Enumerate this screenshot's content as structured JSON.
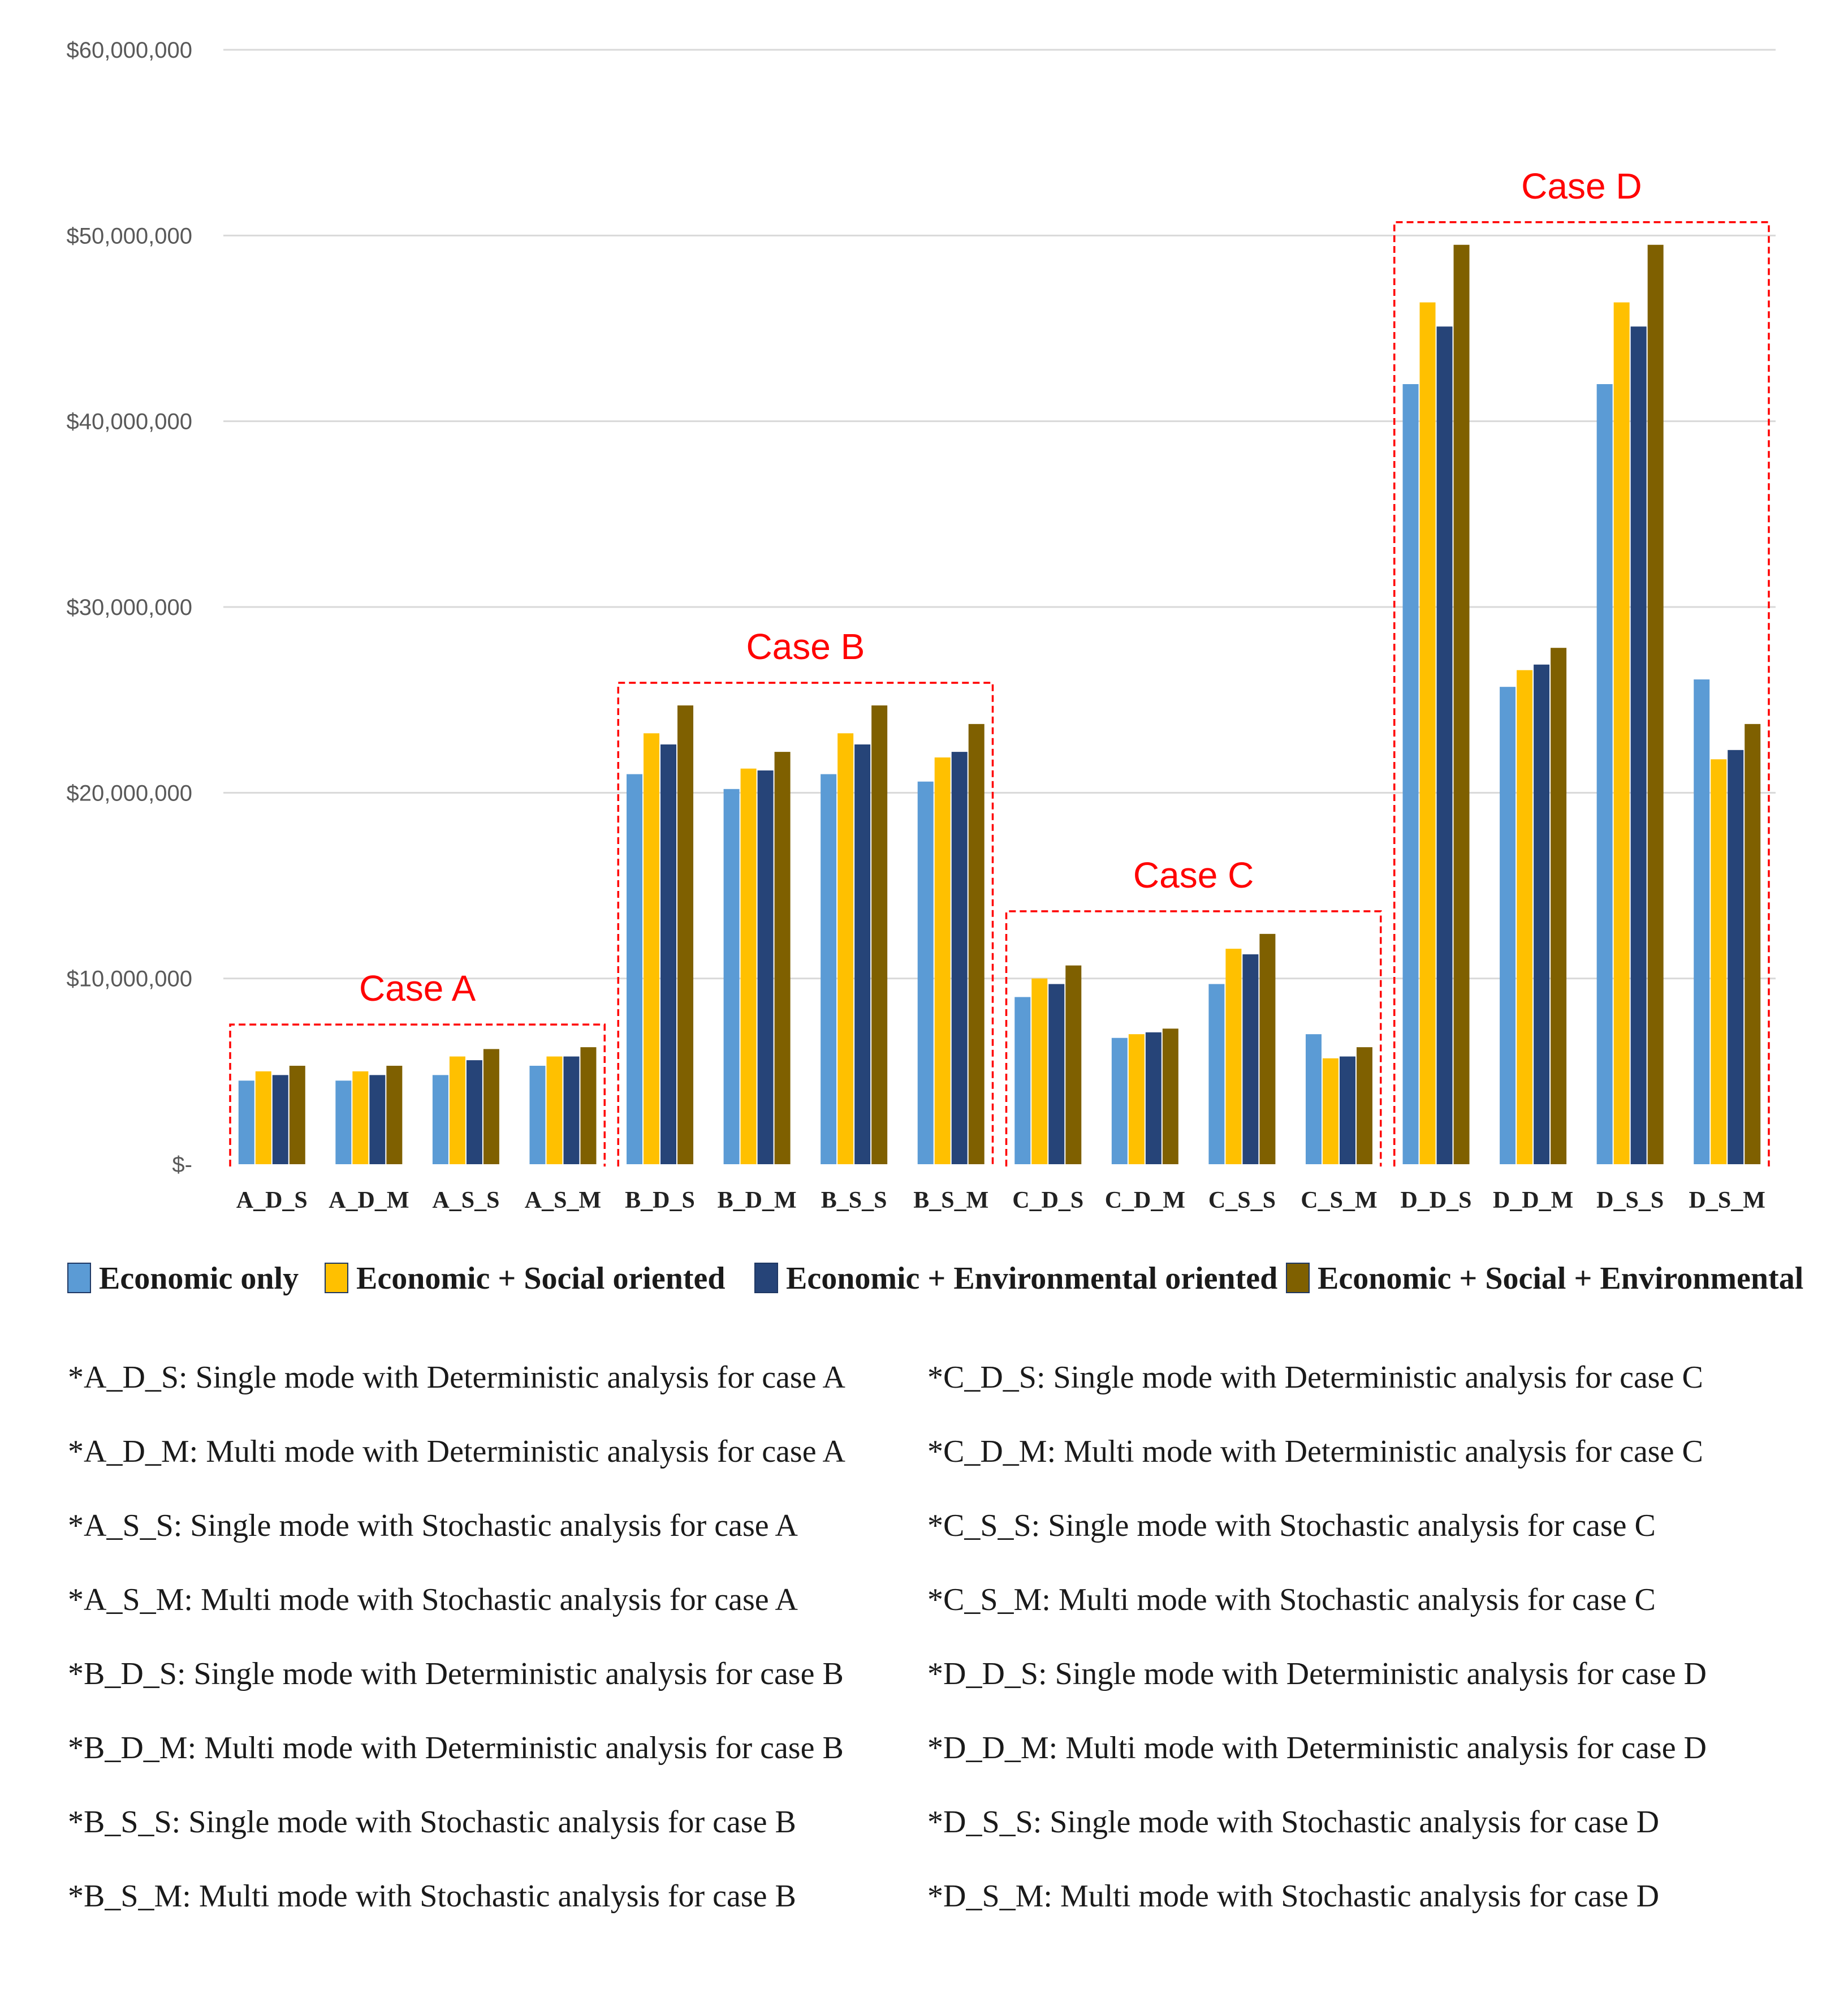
{
  "chart_data": {
    "type": "bar",
    "title": "",
    "xlabel": "",
    "ylabel": "",
    "ylim": [
      0,
      60000000
    ],
    "y_ticks": [
      {
        "value": 0,
        "label": "$-"
      },
      {
        "value": 10000000,
        "label": "$10,000,000"
      },
      {
        "value": 20000000,
        "label": "$20,000,000"
      },
      {
        "value": 30000000,
        "label": "$30,000,000"
      },
      {
        "value": 40000000,
        "label": "$40,000,000"
      },
      {
        "value": 50000000,
        "label": "$50,000,000"
      },
      {
        "value": 60000000,
        "label": "$60,000,000"
      }
    ],
    "grid": true,
    "legend_position": "bottom",
    "categories": [
      "A_D_S",
      "A_D_M",
      "A_S_S",
      "A_S_M",
      "B_D_S",
      "B_D_M",
      "B_S_S",
      "B_S_M",
      "C_D_S",
      "C_D_M",
      "C_S_S",
      "C_S_M",
      "D_D_S",
      "D_D_M",
      "D_S_S",
      "D_S_M"
    ],
    "series": [
      {
        "name": "Economic only",
        "color": "#5b9bd5",
        "values": [
          4500000,
          4500000,
          4800000,
          5300000,
          21000000,
          20200000,
          21000000,
          20600000,
          9000000,
          6800000,
          9700000,
          7000000,
          42000000,
          25700000,
          42000000,
          26100000
        ]
      },
      {
        "name": "Economic + Social oriented",
        "color": "#ffc000",
        "values": [
          5000000,
          5000000,
          5800000,
          5800000,
          23200000,
          21300000,
          23200000,
          21900000,
          10000000,
          7000000,
          11600000,
          5700000,
          46400000,
          26600000,
          46400000,
          21800000
        ]
      },
      {
        "name": "Economic + Environmental oriented",
        "color": "#264478",
        "values": [
          4800000,
          4800000,
          5600000,
          5800000,
          22600000,
          21200000,
          22600000,
          22200000,
          9700000,
          7100000,
          11300000,
          5800000,
          45100000,
          26900000,
          45100000,
          22300000
        ]
      },
      {
        "name": "Economic + Social + Environmental",
        "color": "#7f6000",
        "values": [
          5300000,
          5300000,
          6200000,
          6300000,
          24700000,
          22200000,
          24700000,
          23700000,
          10700000,
          7300000,
          12400000,
          6300000,
          49500000,
          27800000,
          49500000,
          23700000
        ]
      }
    ],
    "annotations": [
      "Case A",
      "Case B",
      "Case C",
      "Case D"
    ]
  },
  "notes": {
    "left": [
      "*A_D_S: Single mode with Deterministic analysis for case A",
      "*A_D_M: Multi mode with Deterministic analysis for case A",
      "*A_S_S: Single mode with Stochastic analysis for case A",
      "*A_S_M: Multi mode with Stochastic analysis for case A",
      "*B_D_S: Single mode with Deterministic analysis for case B",
      "*B_D_M: Multi mode with Deterministic analysis for case B",
      "*B_S_S: Single mode with Stochastic analysis for case B",
      "*B_S_M: Multi mode with Stochastic analysis for case B"
    ],
    "right": [
      "*C_D_S: Single mode with Deterministic analysis for case C",
      "*C_D_M: Multi mode with Deterministic analysis for case C",
      "*C_S_S: Single mode with Stochastic analysis for case C",
      "*C_S_M: Multi mode with Stochastic analysis for case C",
      "*D_D_S: Single mode with Deterministic analysis for case D",
      "*D_D_M: Multi mode with Deterministic analysis for case D",
      "*D_S_S: Single mode with Stochastic analysis for case D",
      "*D_S_M: Multi mode with Stochastic analysis for case D"
    ]
  }
}
